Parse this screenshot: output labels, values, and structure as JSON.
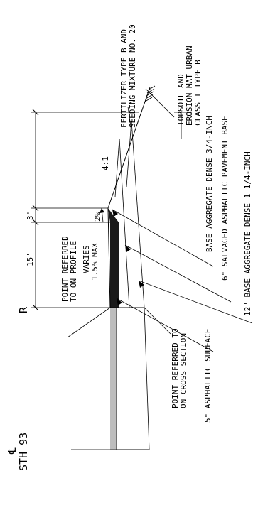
{
  "labels": {
    "fertilizer_1": "FERTILIZER TYPE B AND",
    "fertilizer_2": "SEEDING MIXTURE NO. 20",
    "topsoil_1": "TOPSOIL AND",
    "topsoil_2": "EROSION MAT URBAN",
    "topsoil_3": "CLASS I TYPE B",
    "base_agg_34": "BASE AGGREGATE DENSE 3/4-INCH",
    "salvaged": "6\" SALVAGED ASPHALTIC PAVEMENT BASE",
    "base_agg_114": "12\" BASE AGGREGATE DENSE 1 1/4-INCH",
    "asph_surface": "5\" ASPHALTIC SURFACE",
    "point_profile_1": "POINT REFERRED",
    "point_profile_2": "TO ON PROFILE",
    "varies_1": "VARIES",
    "varies_2": "1.5% MAX",
    "point_cross_1": "POINT REFERRED TO",
    "point_cross_2": "ON CROSS SECTION",
    "dim_15": "15'",
    "dim_3": "3'",
    "slope_2pct": "2%",
    "slope_41": "4:1",
    "ref_line": "R",
    "cl_symbol": "℄",
    "highway": "STH 93"
  },
  "colors": {
    "asphalt": "#1a1a1a",
    "existing_pavement": "#bdbdbd",
    "ink": "#000000"
  }
}
